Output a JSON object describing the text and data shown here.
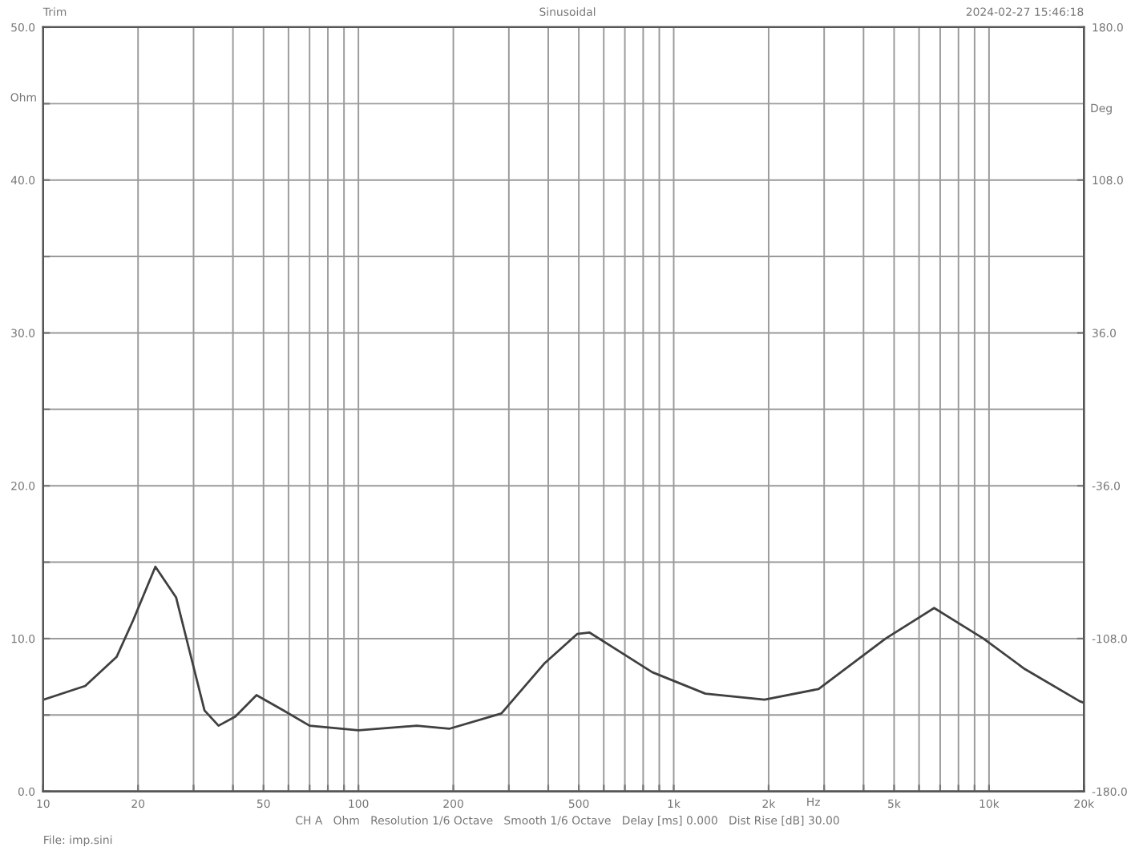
{
  "chart_data": {
    "type": "line",
    "xlabel": "Hz",
    "ylabel": "Ohm",
    "y2label": "Deg",
    "annotations": [
      "Trim",
      "Sinusoidal",
      "2024-02-27 15:46:18",
      "CH A   Ohm   Resolution 1/6 Octave   Smooth 1/6 Octave   Delay [ms] 0.000   Dist Rise [dB] 30.00",
      "File: imp.sini"
    ],
    "log": "x",
    "grid": true,
    "legend": false,
    "marker": "none",
    "line_style": "solid",
    "x": [
      10,
      13.6,
      17.1,
      19.3,
      22.7,
      26.4,
      29.7,
      32.5,
      36,
      40.7,
      47.5,
      57.8,
      70,
      100,
      153,
      194,
      284,
      390,
      494,
      540,
      855,
      1260,
      1940,
      2880,
      4700,
      6700,
      9600,
      13000,
      19400,
      20000
    ],
    "series": [
      {
        "color": "#404040",
        "values": [
          6.0,
          6.9,
          8.8,
          11.2,
          14.7,
          12.7,
          8.5,
          5.3,
          4.3,
          4.9,
          6.3,
          5.3,
          4.3,
          4.0,
          4.3,
          4.1,
          5.1,
          8.4,
          10.3,
          10.4,
          7.8,
          6.4,
          6.0,
          6.7,
          10.0,
          12.0,
          10.0,
          8.0,
          5.9,
          5.8
        ]
      }
    ],
    "xlim": [
      10,
      20000
    ],
    "xticks": [
      10,
      20,
      {
        "value": 30,
        "label": null
      },
      {
        "value": 40,
        "label": null
      },
      50,
      {
        "value": 60,
        "label": null
      },
      {
        "value": 70,
        "label": null
      },
      {
        "value": 80,
        "label": null
      },
      {
        "value": 90,
        "label": null
      },
      100,
      200,
      {
        "value": 300,
        "label": null
      },
      {
        "value": 400,
        "label": null
      },
      500,
      {
        "value": 600,
        "label": null
      },
      {
        "value": 700,
        "label": null
      },
      {
        "value": 800,
        "label": null
      },
      {
        "value": 900,
        "label": null
      },
      {
        "value": 1000,
        "label": "1k"
      },
      {
        "value": 2000,
        "label": "2k"
      },
      {
        "value": 3000,
        "label": null
      },
      {
        "value": 4000,
        "label": null
      },
      {
        "value": 5000,
        "label": "5k"
      },
      {
        "value": 6000,
        "label": null
      },
      {
        "value": 7000,
        "label": null
      },
      {
        "value": 8000,
        "label": null
      },
      {
        "value": 9000,
        "label": null
      },
      {
        "value": 10000,
        "label": "10k"
      },
      {
        "value": 20000,
        "label": "20k"
      }
    ],
    "ylim": [
      0,
      50
    ],
    "yticks": [
      "0.0",
      {
        "value": 5,
        "label": null
      },
      {
        "value": 10,
        "label": "10.0"
      },
      {
        "value": 15,
        "label": null
      },
      {
        "value": 20,
        "label": "20.0"
      },
      {
        "value": 25,
        "label": null
      },
      {
        "value": 30,
        "label": "30.0"
      },
      {
        "value": 35,
        "label": null
      },
      {
        "value": 40,
        "label": "40.0"
      },
      {
        "value": 45,
        "label": null
      },
      {
        "value": 50,
        "label": "50.0"
      }
    ],
    "y2lim": [
      -180,
      180
    ],
    "y2ticks": [
      {
        "value": -180,
        "label": "-180.0"
      },
      {
        "value": -108,
        "label": "-108.0"
      },
      {
        "value": -36,
        "label": "-36.0"
      },
      {
        "value": 36,
        "label": "36.0"
      },
      {
        "value": 108,
        "label": "108.0"
      },
      {
        "value": 180,
        "label": "180.0"
      }
    ]
  }
}
